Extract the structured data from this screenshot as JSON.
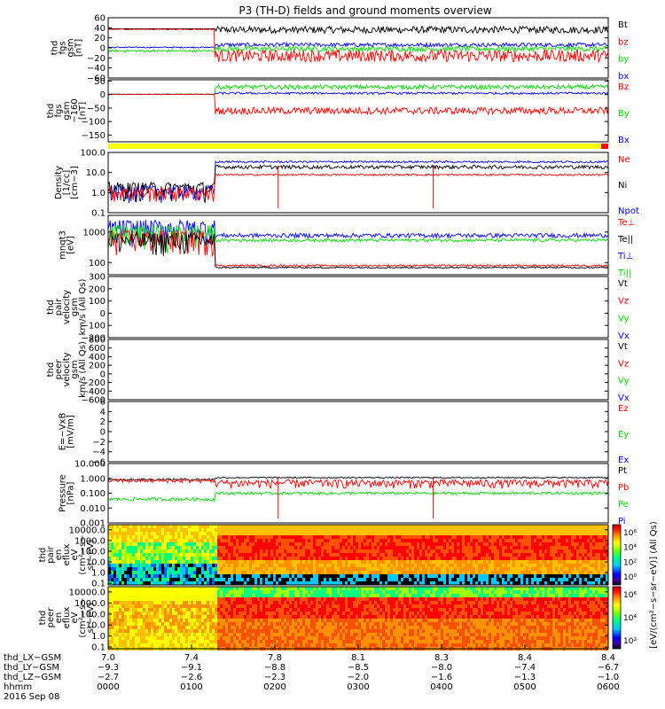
{
  "title": "P3 (TH-D) fields and ground moments overview",
  "colors": {
    "black": "#000000",
    "red": "#ff0000",
    "green": "#00e000",
    "blue": "#0000ff",
    "yellow": "#ffff00",
    "accent_red": "#ff0000"
  },
  "chart_data": [
    {
      "type": "line",
      "ylabel": [
        "thd",
        "fgs",
        "gsm",
        "[nT]"
      ],
      "ylim": [
        -60,
        60
      ],
      "yticks": [
        60,
        40,
        20,
        0,
        -20,
        -40,
        -60
      ],
      "ytick_labels": [
        "60",
        "40",
        "20",
        "0",
        "−20",
        "−40",
        "−60"
      ],
      "series": [
        {
          "name": "Bt",
          "color": "black",
          "values": [
            38,
            38,
            38,
            38,
            38,
            38,
            38,
            38,
            38,
            38,
            38,
            38,
            38,
            38,
            38,
            38,
            38,
            38,
            38,
            38,
            38,
            38,
            38,
            38,
            38,
            38,
            38,
            38,
            38,
            38,
            38,
            38,
            38,
            38,
            38,
            38,
            38,
            38,
            38,
            38,
            38,
            38,
            38,
            38,
            38,
            38,
            38,
            38,
            38,
            38,
            38,
            38,
            38,
            38,
            38,
            38,
            38,
            38,
            38,
            38,
            38,
            38,
            38,
            38,
            38,
            38,
            38,
            38,
            38,
            38,
            38,
            38,
            38,
            38,
            38,
            38,
            38,
            38,
            38,
            38,
            38,
            38,
            38,
            38,
            38,
            38,
            38,
            38,
            38,
            38,
            38,
            38,
            38,
            38,
            38,
            38,
            38,
            38,
            38,
            38,
            38,
            38,
            38,
            38,
            38,
            38,
            38,
            38,
            38,
            38,
            38,
            38,
            38,
            38,
            38,
            38,
            38,
            38,
            38,
            38,
            38,
            38,
            38,
            38,
            38,
            38,
            38,
            38,
            38,
            38,
            38,
            38,
            38,
            38,
            38,
            38,
            38,
            38,
            38,
            38,
            38,
            38,
            38,
            38,
            38,
            38,
            38,
            38,
            38,
            38,
            38,
            38,
            38,
            38,
            38,
            38,
            38,
            38,
            38,
            38,
            38,
            38,
            38,
            38,
            38,
            38,
            38,
            38,
            38,
            38,
            38,
            38,
            38,
            38,
            38,
            38,
            38,
            38,
            38,
            38,
            38,
            38,
            38,
            38,
            38,
            38,
            38,
            38,
            38,
            38,
            38,
            38,
            38,
            38,
            38,
            38,
            38,
            38,
            38,
            38,
            38,
            38,
            38,
            38,
            38,
            38,
            38,
            38,
            38,
            38,
            38,
            38,
            38,
            38,
            38,
            38,
            38,
            38,
            38,
            38,
            38,
            38,
            38,
            38,
            38,
            38,
            38,
            38,
            38,
            38,
            38,
            38,
            38,
            38,
            38,
            38,
            38,
            38,
            38,
            38
          ]
        },
        {
          "name": "bz",
          "color": "red"
        },
        {
          "name": "by",
          "color": "green"
        },
        {
          "name": "bx",
          "color": "blue"
        }
      ]
    },
    {
      "type": "line",
      "ylabel": [
        "thd",
        "fgs",
        "gsm",
        "−160",
        "[nT]"
      ],
      "ylim": [
        -175,
        55
      ],
      "yticks": [
        50,
        0,
        -50,
        -100,
        -150
      ],
      "ytick_labels": [
        "50",
        "0",
        "−50",
        "−100",
        "−150"
      ],
      "series": [
        {
          "name": "Bz",
          "color": "red"
        },
        {
          "name": "By",
          "color": "green"
        },
        {
          "name": "Bx",
          "color": "blue"
        }
      ]
    },
    {
      "type": "line",
      "ylabel": [
        "Density",
        "[1/cc]",
        "[cm−3]"
      ],
      "scale": "log",
      "ylim": [
        0.1,
        100
      ],
      "yticks": [
        100,
        10,
        1,
        0.1
      ],
      "ytick_labels": [
        "100.0",
        "10.0",
        "1.0",
        "0.1"
      ],
      "series": [
        {
          "name": "Ne",
          "color": "red"
        },
        {
          "name": "Ni",
          "color": "black"
        },
        {
          "name": "Npot",
          "color": "blue"
        }
      ]
    },
    {
      "type": "line",
      "ylabel": [
        "mnqt3",
        "[eV]"
      ],
      "scale": "log",
      "ylim": [
        40,
        3500
      ],
      "yticks": [
        1000,
        100
      ],
      "ytick_labels": [
        "1000",
        "100"
      ],
      "series": [
        {
          "name": "Te⊥",
          "color": "red"
        },
        {
          "name": "Te||",
          "color": "black"
        },
        {
          "name": "Ti⊥",
          "color": "blue"
        },
        {
          "name": "Ti||",
          "color": "green"
        }
      ]
    },
    {
      "type": "line",
      "ylabel": [
        "thd",
        "pair",
        "velocity",
        "gsm",
        "km/s (All Qs)"
      ],
      "ylim": [
        -200,
        300
      ],
      "yticks": [
        300,
        200,
        100,
        0,
        -100,
        -200
      ],
      "ytick_labels": [
        "300",
        "200",
        "100",
        "0",
        "−100",
        "−200"
      ],
      "series": [
        {
          "name": "Vt",
          "color": "black"
        },
        {
          "name": "Vz",
          "color": "red"
        },
        {
          "name": "Vy",
          "color": "green"
        },
        {
          "name": "Vx",
          "color": "blue"
        }
      ]
    },
    {
      "type": "line",
      "ylabel": [
        "thd",
        "peer",
        "velocity",
        "gsm",
        "km/s (All Qs)"
      ],
      "ylim": [
        -600,
        800
      ],
      "yticks": [
        800,
        600,
        400,
        200,
        0,
        -200,
        -400,
        -600
      ],
      "ytick_labels": [
        "800",
        "600",
        "400",
        "200",
        "0",
        "−200",
        "−400",
        "−600"
      ],
      "series": [
        {
          "name": "Vt",
          "color": "black"
        },
        {
          "name": "Vz",
          "color": "red"
        },
        {
          "name": "Vy",
          "color": "green"
        },
        {
          "name": "Vx",
          "color": "blue"
        }
      ]
    },
    {
      "type": "line",
      "ylabel": [
        "E=−VxB",
        "[mV/m]"
      ],
      "ylim": [
        -6,
        6
      ],
      "yticks": [
        6,
        4,
        2,
        0,
        -2,
        -4,
        -6
      ],
      "ytick_labels": [
        "6",
        "4",
        "2",
        "0",
        "−2",
        "−4",
        "−6"
      ],
      "series": [
        {
          "name": "Ez",
          "color": "red"
        },
        {
          "name": "Ey",
          "color": "green"
        },
        {
          "name": "Ex",
          "color": "blue"
        }
      ]
    },
    {
      "type": "line",
      "ylabel": [
        "Pressure",
        "[nPa]"
      ],
      "scale": "log",
      "ylim": [
        0.001,
        10
      ],
      "yticks": [
        10,
        1,
        0.1,
        0.01,
        0.001
      ],
      "ytick_labels": [
        "10.000",
        "1.000",
        "0.100",
        "0.010",
        "0.001"
      ],
      "series": [
        {
          "name": "Pt",
          "color": "black"
        },
        {
          "name": "Pb",
          "color": "red"
        },
        {
          "name": "Pe",
          "color": "green"
        },
        {
          "name": "Pi",
          "color": "blue"
        }
      ]
    },
    {
      "type": "heatmap",
      "ylabel": [
        "thd",
        "pair",
        "en",
        "eflux",
        "eV",
        "(cm²−s−",
        "sr−eV)"
      ],
      "scale": "log",
      "ylim": [
        0.07,
        30000
      ],
      "yticks": [
        10000,
        1000,
        100,
        10,
        1,
        0.1
      ],
      "ytick_labels": [
        "10000.0",
        "1000.0",
        "100.0",
        "10.0",
        "1.0",
        "0.1"
      ],
      "colorbar_ticks": [
        "10⁶",
        "10⁴",
        "10²",
        "10⁰"
      ]
    },
    {
      "type": "heatmap",
      "ylabel": [
        "thd",
        "peer",
        "en",
        "eflux",
        "eV",
        "(cm²−s−",
        "sr−eV)"
      ],
      "scale": "log",
      "ylim": [
        0.07,
        30000
      ],
      "yticks": [
        10000,
        1000,
        100,
        10,
        1,
        0.1
      ],
      "ytick_labels": [
        "10000.0",
        "1000.0",
        "100.0",
        "10.0",
        "1.0",
        "0.1"
      ],
      "colorbar_ticks": [
        "10⁶",
        "10⁴",
        "10²"
      ]
    }
  ],
  "colorbar_label": "[eV/(cm²−s−sr−eV)] (All Qs)",
  "x_axis": {
    "row_labels": [
      "thd_LX−GSM",
      "thd_LY−GSM",
      "thd_LZ−GSM",
      "hhmm",
      "2016 Sep 08"
    ],
    "columns": [
      [
        "7.0",
        "−9.3",
        "−2.7",
        "0000"
      ],
      [
        "7.4",
        "−9.1",
        "−2.6",
        "0100"
      ],
      [
        "7.8",
        "−8.8",
        "−2.3",
        "0200"
      ],
      [
        "8.1",
        "−8.5",
        "−2.0",
        "0300"
      ],
      [
        "8.3",
        "−8.0",
        "−1.6",
        "0400"
      ],
      [
        "8.4",
        "−7.4",
        "−1.3",
        "0500"
      ],
      [
        "8.4",
        "−6.7",
        "−1.0",
        "0600"
      ]
    ]
  }
}
